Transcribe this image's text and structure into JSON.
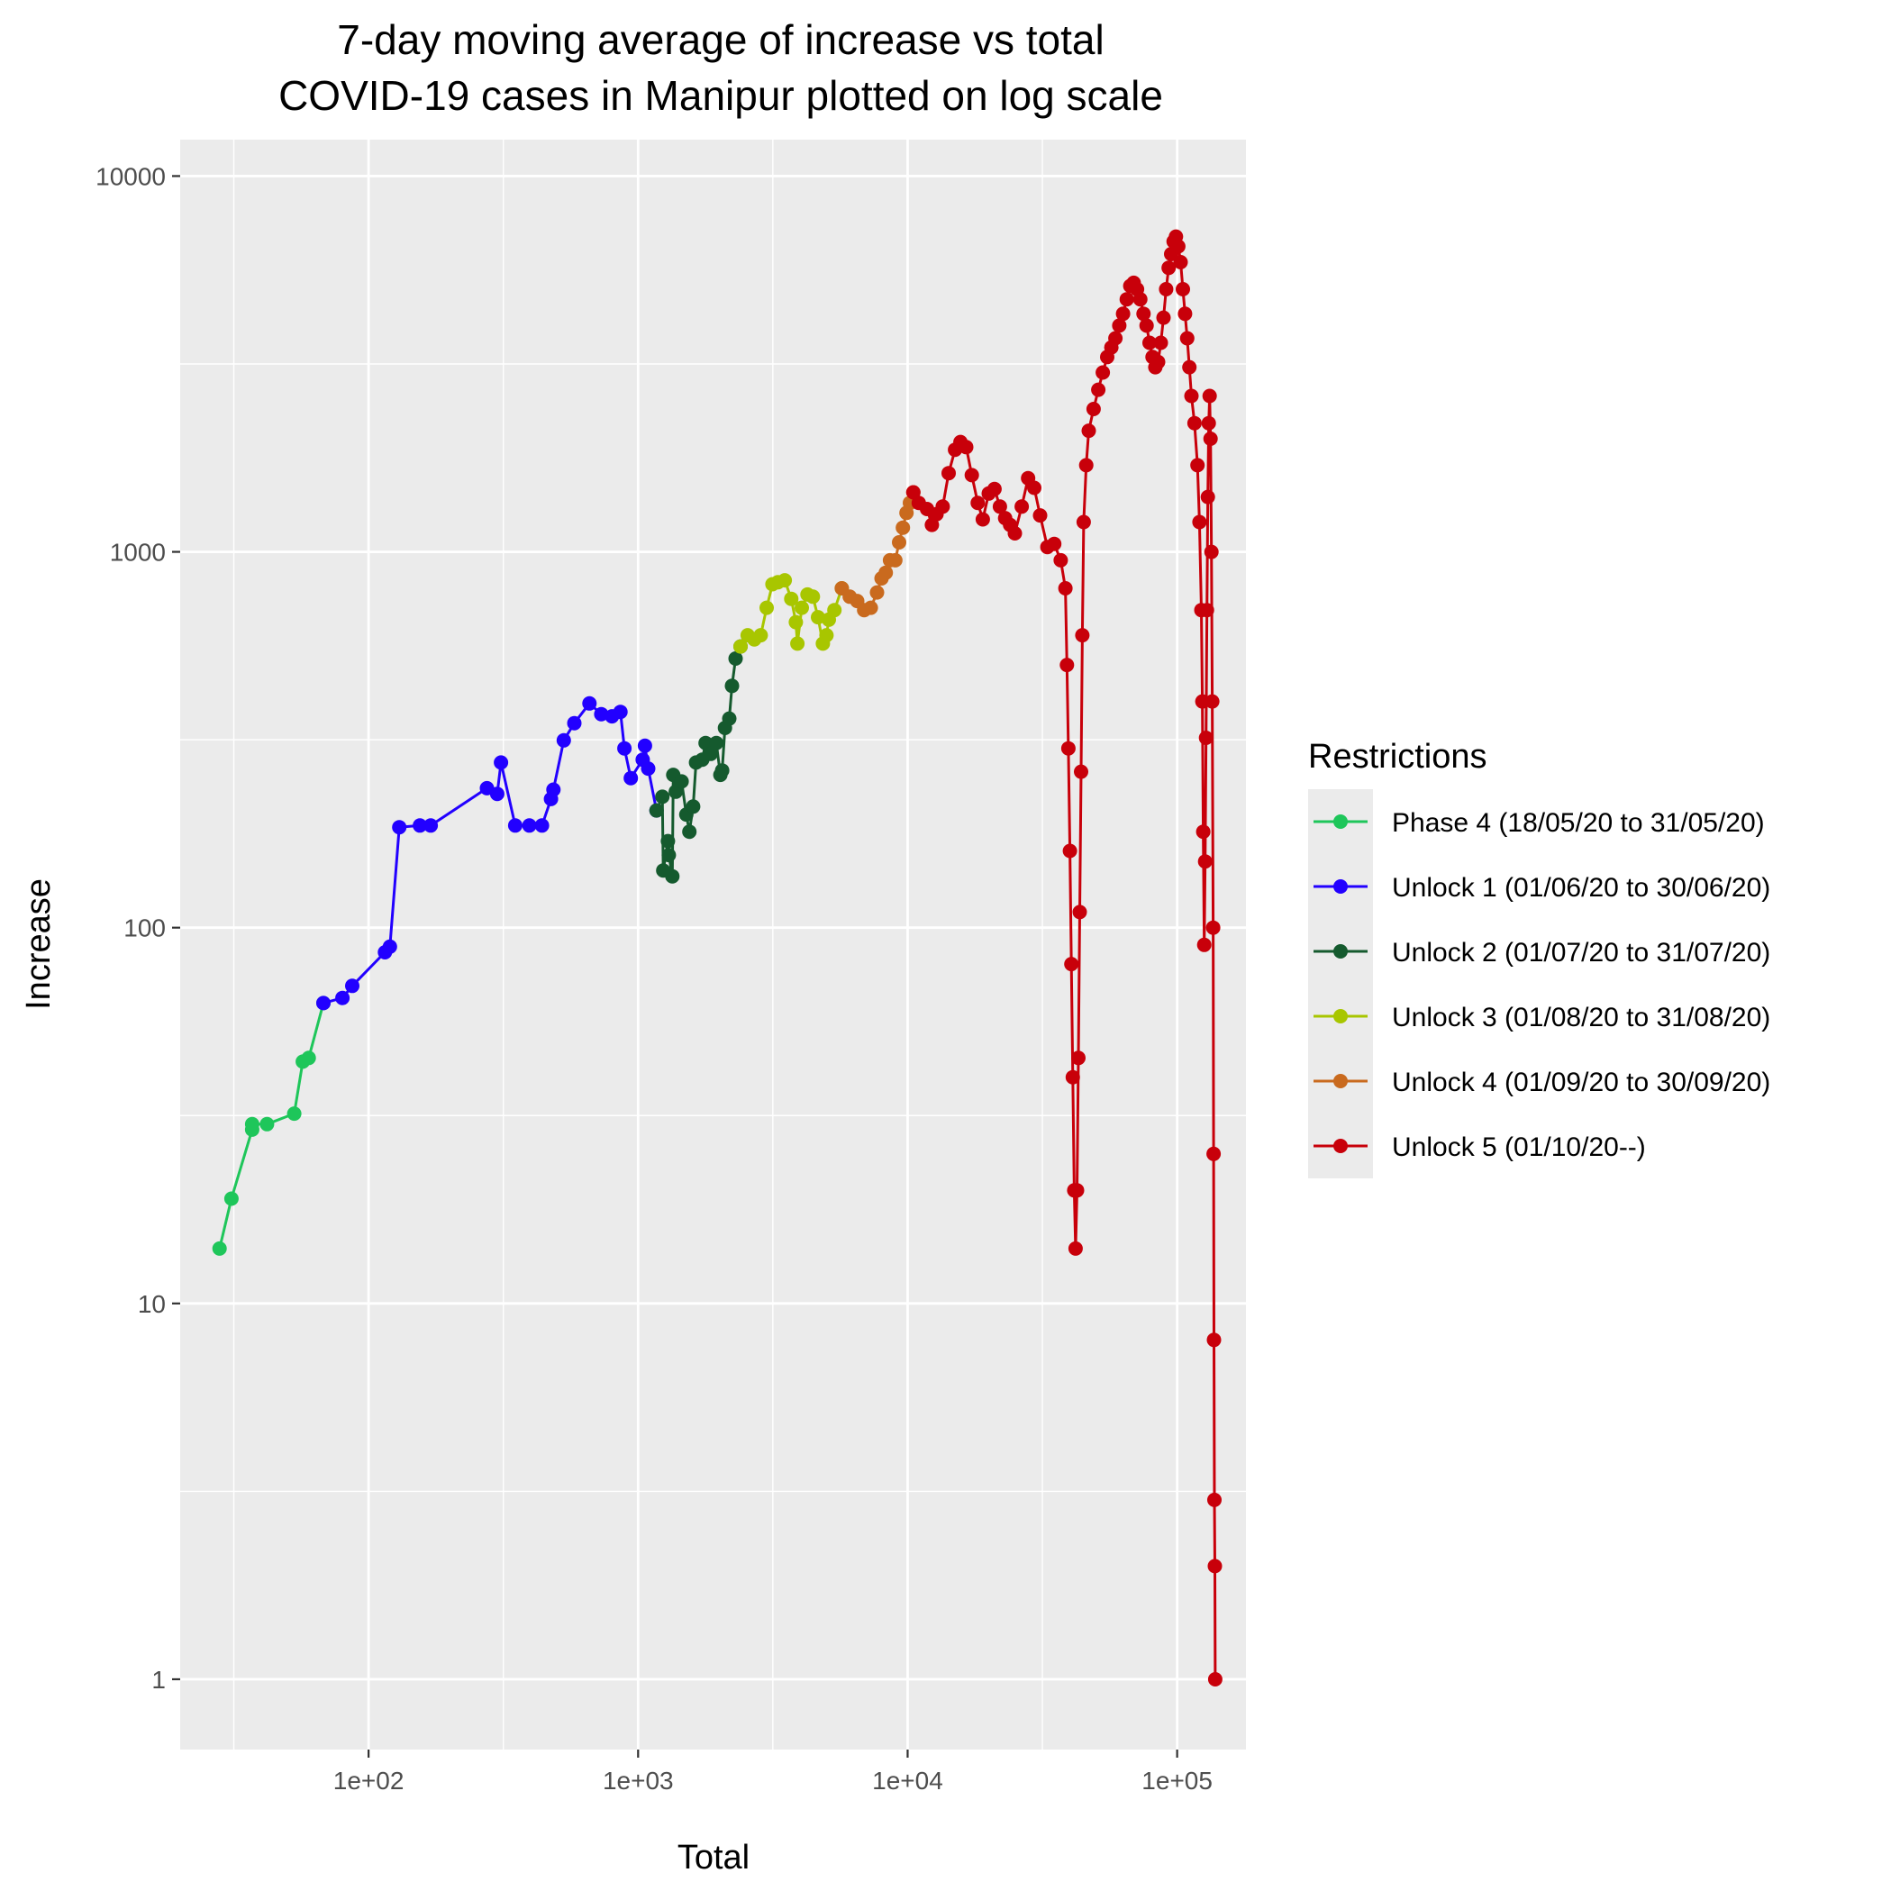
{
  "chart_data": {
    "type": "line",
    "title": "7-day moving average of increase vs total",
    "subtitle": "COVID-19 cases in Manipur plotted on log scale",
    "xlabel": "Total",
    "ylabel": "Increase",
    "x_scale": "log10",
    "y_scale": "log10",
    "xlim": [
      20,
      180000
    ],
    "ylim": [
      0.65,
      12500
    ],
    "x_ticks": [
      100,
      1000,
      10000,
      100000
    ],
    "x_tick_labels": [
      "1e+02",
      "1e+03",
      "1e+04",
      "1e+05"
    ],
    "y_ticks": [
      1,
      10,
      100,
      1000,
      10000
    ],
    "y_tick_labels": [
      "1",
      "10",
      "100",
      "1000",
      "10000"
    ],
    "grid": true,
    "legend": {
      "title": "Restrictions",
      "position": "right"
    },
    "series": [
      {
        "name": "Phase 4 (18/05/20 to 31/05/20)",
        "color": "#1ec65a",
        "points": [
          [
            28,
            14
          ],
          [
            31,
            19
          ],
          [
            37,
            29
          ],
          [
            37,
            30
          ],
          [
            42,
            30
          ],
          [
            53,
            32
          ],
          [
            57,
            44
          ],
          [
            60,
            45
          ],
          [
            68,
            63
          ]
        ]
      },
      {
        "name": "Unlock 1 (01/06/20 to 30/06/20)",
        "color": "#2200ff",
        "points": [
          [
            68,
            63
          ],
          [
            80,
            65
          ],
          [
            87,
            70
          ],
          [
            115,
            86
          ],
          [
            120,
            89
          ],
          [
            130,
            185
          ],
          [
            155,
            187
          ],
          [
            170,
            187
          ],
          [
            275,
            235
          ],
          [
            300,
            227
          ],
          [
            310,
            275
          ],
          [
            350,
            187
          ],
          [
            395,
            187
          ],
          [
            440,
            187
          ],
          [
            475,
            220
          ],
          [
            485,
            233
          ],
          [
            530,
            315
          ],
          [
            580,
            350
          ],
          [
            660,
            395
          ],
          [
            730,
            370
          ],
          [
            800,
            365
          ],
          [
            860,
            375
          ],
          [
            890,
            300
          ],
          [
            940,
            250
          ],
          [
            1040,
            280
          ],
          [
            1060,
            305
          ],
          [
            1090,
            265
          ],
          [
            1170,
            205
          ]
        ]
      },
      {
        "name": "Unlock 2 (01/07/20 to 31/07/20)",
        "color": "#155a2e",
        "points": [
          [
            1170,
            205
          ],
          [
            1230,
            223
          ],
          [
            1240,
            142
          ],
          [
            1290,
            170
          ],
          [
            1300,
            156
          ],
          [
            1340,
            137
          ],
          [
            1350,
            255
          ],
          [
            1380,
            230
          ],
          [
            1450,
            245
          ],
          [
            1510,
            200
          ],
          [
            1550,
            180
          ],
          [
            1600,
            210
          ],
          [
            1640,
            275
          ],
          [
            1730,
            280
          ],
          [
            1780,
            310
          ],
          [
            1860,
            290
          ],
          [
            1950,
            310
          ],
          [
            2020,
            255
          ],
          [
            2050,
            262
          ],
          [
            2100,
            340
          ],
          [
            2180,
            360
          ],
          [
            2230,
            440
          ],
          [
            2300,
            520
          ],
          [
            2400,
            560
          ]
        ]
      },
      {
        "name": "Unlock 3 (01/08/20 to 31/08/20)",
        "color": "#a8c600",
        "points": [
          [
            2400,
            560
          ],
          [
            2550,
            600
          ],
          [
            2700,
            585
          ],
          [
            2850,
            600
          ],
          [
            3000,
            710
          ],
          [
            3150,
            820
          ],
          [
            3300,
            830
          ],
          [
            3500,
            840
          ],
          [
            3700,
            750
          ],
          [
            3850,
            650
          ],
          [
            3900,
            570
          ],
          [
            4050,
            710
          ],
          [
            4250,
            770
          ],
          [
            4450,
            760
          ],
          [
            4650,
            670
          ],
          [
            4850,
            570
          ],
          [
            5000,
            600
          ],
          [
            5100,
            660
          ],
          [
            5350,
            700
          ],
          [
            5700,
            800
          ]
        ]
      },
      {
        "name": "Unlock 4 (01/09/20 to 30/09/20)",
        "color": "#c96a1e",
        "points": [
          [
            5700,
            800
          ],
          [
            6100,
            760
          ],
          [
            6500,
            740
          ],
          [
            6900,
            700
          ],
          [
            7300,
            710
          ],
          [
            7700,
            780
          ],
          [
            8000,
            850
          ],
          [
            8300,
            880
          ],
          [
            8600,
            950
          ],
          [
            9000,
            950
          ],
          [
            9300,
            1060
          ],
          [
            9600,
            1160
          ],
          [
            9900,
            1270
          ],
          [
            10200,
            1350
          ],
          [
            10500,
            1440
          ]
        ]
      },
      {
        "name": "Unlock 5 (01/10/20--)",
        "color": "#c8000a",
        "points": [
          [
            10500,
            1440
          ],
          [
            11000,
            1350
          ],
          [
            11800,
            1300
          ],
          [
            12300,
            1180
          ],
          [
            12800,
            1260
          ],
          [
            13500,
            1320
          ],
          [
            14200,
            1620
          ],
          [
            15000,
            1870
          ],
          [
            15700,
            1960
          ],
          [
            16500,
            1900
          ],
          [
            17300,
            1600
          ],
          [
            18200,
            1350
          ],
          [
            19000,
            1220
          ],
          [
            20000,
            1430
          ],
          [
            21000,
            1470
          ],
          [
            22000,
            1320
          ],
          [
            23000,
            1230
          ],
          [
            24000,
            1180
          ],
          [
            25000,
            1120
          ],
          [
            26500,
            1320
          ],
          [
            28000,
            1570
          ],
          [
            29500,
            1480
          ],
          [
            31000,
            1250
          ],
          [
            33000,
            1030
          ],
          [
            35000,
            1050
          ],
          [
            37000,
            950
          ],
          [
            38500,
            800
          ],
          [
            39000,
            500
          ],
          [
            39500,
            300
          ],
          [
            40000,
            160
          ],
          [
            40500,
            80
          ],
          [
            41000,
            40
          ],
          [
            41500,
            20
          ],
          [
            42000,
            14
          ],
          [
            42500,
            20
          ],
          [
            43000,
            45
          ],
          [
            43500,
            110
          ],
          [
            44000,
            260
          ],
          [
            44500,
            600
          ],
          [
            45000,
            1200
          ],
          [
            46000,
            1700
          ],
          [
            47000,
            2100
          ],
          [
            49000,
            2400
          ],
          [
            51000,
            2700
          ],
          [
            53000,
            3000
          ],
          [
            55000,
            3300
          ],
          [
            57000,
            3500
          ],
          [
            59000,
            3700
          ],
          [
            61000,
            4000
          ],
          [
            63000,
            4300
          ],
          [
            65000,
            4700
          ],
          [
            67000,
            5100
          ],
          [
            69000,
            5200
          ],
          [
            71000,
            5000
          ],
          [
            73000,
            4700
          ],
          [
            75000,
            4300
          ],
          [
            77000,
            4000
          ],
          [
            79000,
            3600
          ],
          [
            81000,
            3300
          ],
          [
            83000,
            3100
          ],
          [
            85000,
            3200
          ],
          [
            87000,
            3600
          ],
          [
            89000,
            4200
          ],
          [
            91000,
            5000
          ],
          [
            93000,
            5700
          ],
          [
            95000,
            6200
          ],
          [
            97000,
            6700
          ],
          [
            99000,
            6900
          ],
          [
            101000,
            6500
          ],
          [
            103000,
            5900
          ],
          [
            105000,
            5000
          ],
          [
            107000,
            4300
          ],
          [
            109000,
            3700
          ],
          [
            111000,
            3100
          ],
          [
            113000,
            2600
          ],
          [
            116000,
            2200
          ],
          [
            119000,
            1700
          ],
          [
            121000,
            1200
          ],
          [
            123000,
            700
          ],
          [
            124000,
            400
          ],
          [
            125000,
            180
          ],
          [
            126000,
            90
          ],
          [
            127000,
            150
          ],
          [
            128000,
            320
          ],
          [
            129000,
            700
          ],
          [
            130000,
            1400
          ],
          [
            131000,
            2200
          ],
          [
            132000,
            2600
          ],
          [
            133000,
            2000
          ],
          [
            134000,
            1000
          ],
          [
            135000,
            400
          ],
          [
            136000,
            100
          ],
          [
            136500,
            25
          ],
          [
            137000,
            8
          ],
          [
            137500,
            3
          ],
          [
            138000,
            2
          ],
          [
            138500,
            1
          ]
        ]
      }
    ]
  }
}
